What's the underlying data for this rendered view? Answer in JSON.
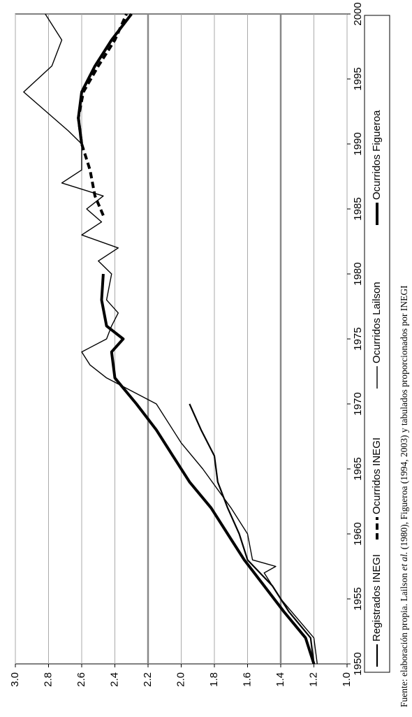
{
  "chart_data": {
    "type": "line",
    "series": [
      {
        "name": "Registrados INEGI",
        "color": "#000",
        "width": 2.2,
        "dash": "none",
        "x": [
          1950,
          1952,
          1954,
          1956,
          1958,
          1960,
          1962,
          1964,
          1966,
          1968,
          1970
        ],
        "values": [
          1.2,
          1.22,
          1.35,
          1.45,
          1.6,
          1.65,
          1.72,
          1.78,
          1.8,
          1.88,
          1.95
        ]
      },
      {
        "name": "Ocurridos INEGI",
        "color": "#000",
        "width": 4,
        "dash": "9 5",
        "x": [
          1984.5,
          1986,
          1988,
          1990,
          1992,
          1994,
          1996,
          1998,
          2000
        ],
        "values": [
          2.47,
          2.52,
          2.55,
          2.6,
          2.62,
          2.59,
          2.5,
          2.4,
          2.33
        ]
      },
      {
        "name": "Ocurridos Lailson",
        "color": "#000",
        "width": 1.4,
        "dash": "none",
        "x": [
          1950,
          1952,
          1955,
          1957,
          1957.5,
          1958,
          1960,
          1962,
          1965,
          1967,
          1970,
          1972,
          1973,
          1974,
          1975,
          1976,
          1977,
          1978,
          1980,
          1981,
          1982,
          1983,
          1984,
          1985,
          1986,
          1987,
          1988,
          1990,
          1991,
          1994,
          1996,
          1998,
          2000
        ],
        "values": [
          1.18,
          1.2,
          1.4,
          1.5,
          1.43,
          1.57,
          1.6,
          1.7,
          1.87,
          2.0,
          2.15,
          2.45,
          2.55,
          2.6,
          2.45,
          2.42,
          2.38,
          2.45,
          2.42,
          2.5,
          2.38,
          2.6,
          2.48,
          2.57,
          2.47,
          2.72,
          2.6,
          2.6,
          2.68,
          2.95,
          2.78,
          2.72,
          2.82
        ]
      },
      {
        "name": "Ocurridos Figueroa",
        "color": "#000",
        "width": 4,
        "dash": "none",
        "x": [
          1950,
          1952,
          1954,
          1956,
          1958,
          1960,
          1962,
          1964,
          1966,
          1968,
          1970,
          1972,
          1974,
          1975,
          1976,
          1978,
          1980,
          1985,
          1990,
          1992,
          1994,
          1996,
          1998,
          2000
        ],
        "values": [
          1.2,
          1.25,
          1.38,
          1.5,
          1.62,
          1.72,
          1.82,
          1.95,
          2.05,
          2.15,
          2.27,
          2.4,
          2.42,
          2.35,
          2.45,
          2.48,
          2.47,
          null,
          2.6,
          2.62,
          2.6,
          2.52,
          2.42,
          2.3
        ]
      }
    ],
    "xlim": [
      1950,
      2000
    ],
    "xticks": [
      1950,
      1955,
      1960,
      1965,
      1970,
      1975,
      1980,
      1985,
      1990,
      1995,
      2000
    ],
    "ylim": [
      1.0,
      3.0
    ],
    "yticks": [
      {
        "value": 1.0,
        "label": "1.0"
      },
      1.2,
      1.4,
      1.6,
      1.8,
      {
        "value": 2.0,
        "label": "2.0"
      },
      2.2,
      2.4,
      2.6,
      2.8,
      {
        "value": 3.0,
        "label": "3.0"
      }
    ],
    "grid": true,
    "major_grid": [
      1.4,
      2.2
    ],
    "source": [
      "Fuente: elaboración propia. Lailson ",
      "et al.",
      " (1980), Figueroa (1994, 2003) y tabulados proporcionados por INEGI"
    ]
  }
}
